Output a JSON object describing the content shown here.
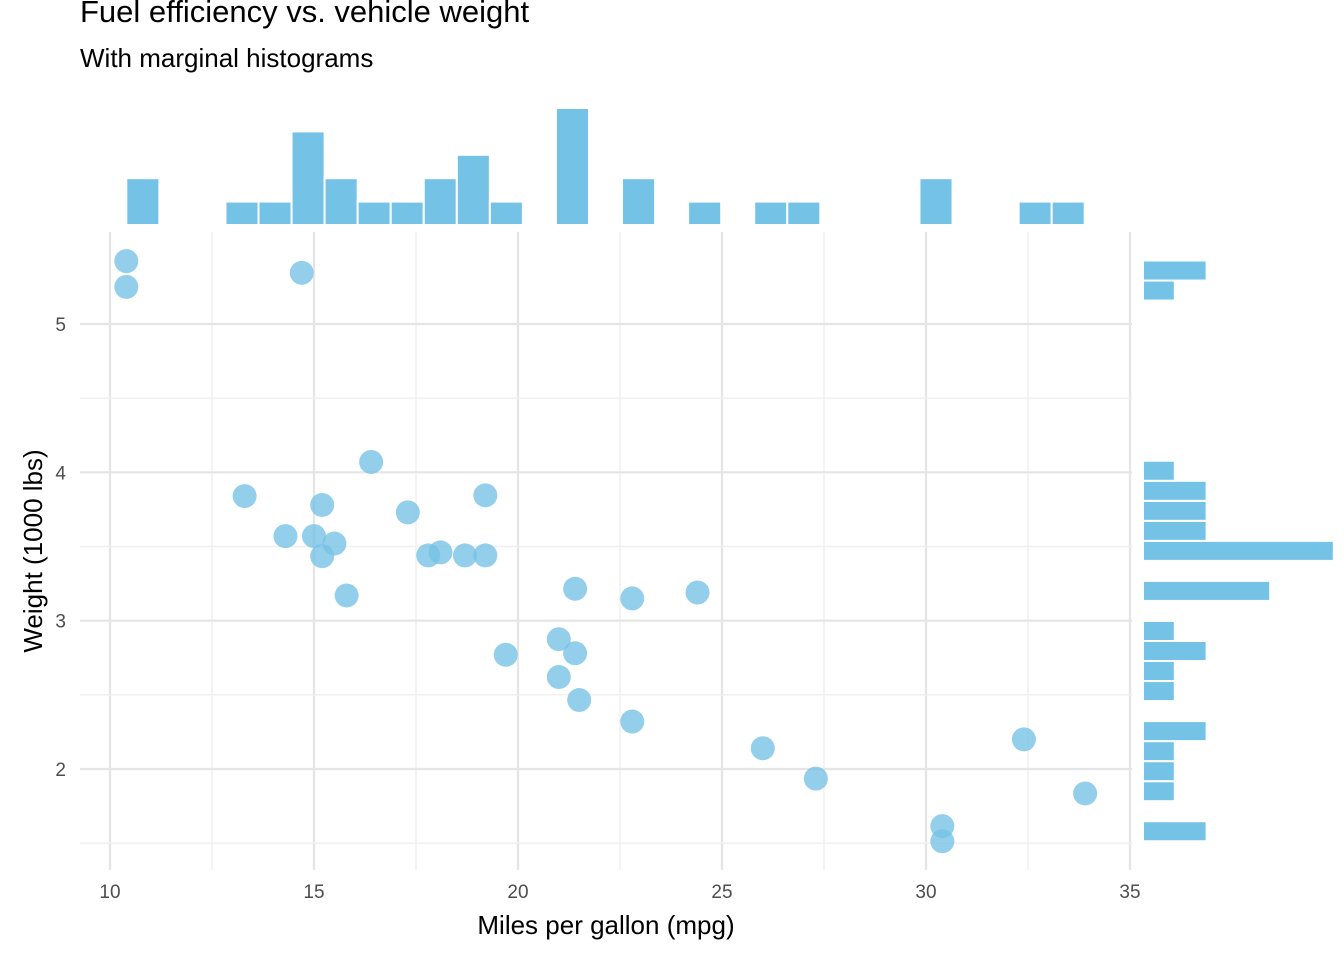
{
  "title": "Fuel efficiency vs. vehicle weight",
  "subtitle": "With marginal histograms",
  "colors": {
    "point": "#74c2e6",
    "bar": "#74c2e6",
    "grid": "#e5e5e5",
    "grid_minor": "#efefef"
  },
  "chart_data": {
    "type": "scatter",
    "title": "Fuel efficiency vs. vehicle weight",
    "subtitle": "With marginal histograms",
    "xlabel": "Miles per gallon (mpg)",
    "ylabel": "Weight (1000 lbs)",
    "xlim": [
      9.3,
      35
    ],
    "ylim": [
      1.35,
      5.58
    ],
    "xticks": [
      10,
      15,
      20,
      25,
      30,
      35
    ],
    "yticks": [
      2,
      3,
      4,
      5
    ],
    "grid": true,
    "legend": "none",
    "points": [
      {
        "x": 21.0,
        "y": 2.62
      },
      {
        "x": 21.0,
        "y": 2.875
      },
      {
        "x": 22.8,
        "y": 2.32
      },
      {
        "x": 21.4,
        "y": 3.215
      },
      {
        "x": 18.7,
        "y": 3.44
      },
      {
        "x": 18.1,
        "y": 3.46
      },
      {
        "x": 14.3,
        "y": 3.57
      },
      {
        "x": 24.4,
        "y": 3.19
      },
      {
        "x": 22.8,
        "y": 3.15
      },
      {
        "x": 19.2,
        "y": 3.44
      },
      {
        "x": 17.8,
        "y": 3.44
      },
      {
        "x": 16.4,
        "y": 4.07
      },
      {
        "x": 17.3,
        "y": 3.73
      },
      {
        "x": 15.2,
        "y": 3.78
      },
      {
        "x": 10.4,
        "y": 5.25
      },
      {
        "x": 10.4,
        "y": 5.424
      },
      {
        "x": 14.7,
        "y": 5.345
      },
      {
        "x": 32.4,
        "y": 2.2
      },
      {
        "x": 30.4,
        "y": 1.615
      },
      {
        "x": 33.9,
        "y": 1.835
      },
      {
        "x": 21.5,
        "y": 2.465
      },
      {
        "x": 15.5,
        "y": 3.52
      },
      {
        "x": 15.2,
        "y": 3.435
      },
      {
        "x": 13.3,
        "y": 3.84
      },
      {
        "x": 19.2,
        "y": 3.845
      },
      {
        "x": 27.3,
        "y": 1.935
      },
      {
        "x": 26.0,
        "y": 2.14
      },
      {
        "x": 30.4,
        "y": 1.513
      },
      {
        "x": 15.8,
        "y": 3.17
      },
      {
        "x": 19.7,
        "y": 2.77
      },
      {
        "x": 15.0,
        "y": 3.57
      },
      {
        "x": 21.4,
        "y": 2.78
      }
    ],
    "top_histogram": {
      "bin_width": 0.81,
      "bins": [
        {
          "start": 10.4,
          "count": 2
        },
        {
          "start": 11.21,
          "count": 0
        },
        {
          "start": 12.02,
          "count": 0
        },
        {
          "start": 12.83,
          "count": 1
        },
        {
          "start": 13.64,
          "count": 1
        },
        {
          "start": 14.45,
          "count": 4
        },
        {
          "start": 15.26,
          "count": 2
        },
        {
          "start": 16.07,
          "count": 1
        },
        {
          "start": 16.88,
          "count": 1
        },
        {
          "start": 17.69,
          "count": 2
        },
        {
          "start": 18.5,
          "count": 3
        },
        {
          "start": 19.31,
          "count": 1
        },
        {
          "start": 20.12,
          "count": 0
        },
        {
          "start": 20.93,
          "count": 5
        },
        {
          "start": 21.74,
          "count": 0
        },
        {
          "start": 22.55,
          "count": 2
        },
        {
          "start": 23.36,
          "count": 0
        },
        {
          "start": 24.17,
          "count": 1
        },
        {
          "start": 24.98,
          "count": 0
        },
        {
          "start": 25.79,
          "count": 1
        },
        {
          "start": 26.6,
          "count": 1
        },
        {
          "start": 27.41,
          "count": 0
        },
        {
          "start": 28.22,
          "count": 0
        },
        {
          "start": 29.03,
          "count": 0
        },
        {
          "start": 29.84,
          "count": 2
        },
        {
          "start": 30.65,
          "count": 0
        },
        {
          "start": 31.46,
          "count": 0
        },
        {
          "start": 32.27,
          "count": 1
        },
        {
          "start": 33.08,
          "count": 1
        }
      ]
    },
    "right_histogram": {
      "bin_width": 0.135,
      "bins": [
        {
          "start": 1.513,
          "count": 2
        },
        {
          "start": 1.648,
          "count": 0
        },
        {
          "start": 1.783,
          "count": 1
        },
        {
          "start": 1.918,
          "count": 1
        },
        {
          "start": 2.053,
          "count": 1
        },
        {
          "start": 2.188,
          "count": 2
        },
        {
          "start": 2.323,
          "count": 0
        },
        {
          "start": 2.458,
          "count": 1
        },
        {
          "start": 2.593,
          "count": 1
        },
        {
          "start": 2.728,
          "count": 2
        },
        {
          "start": 2.863,
          "count": 1
        },
        {
          "start": 2.998,
          "count": 0
        },
        {
          "start": 3.133,
          "count": 4
        },
        {
          "start": 3.268,
          "count": 0
        },
        {
          "start": 3.403,
          "count": 6
        },
        {
          "start": 3.538,
          "count": 2
        },
        {
          "start": 3.673,
          "count": 2
        },
        {
          "start": 3.808,
          "count": 2
        },
        {
          "start": 3.943,
          "count": 1
        },
        {
          "start": 4.078,
          "count": 0
        },
        {
          "start": 4.213,
          "count": 0
        },
        {
          "start": 4.348,
          "count": 0
        },
        {
          "start": 4.483,
          "count": 0
        },
        {
          "start": 4.618,
          "count": 0
        },
        {
          "start": 4.753,
          "count": 0
        },
        {
          "start": 4.888,
          "count": 0
        },
        {
          "start": 5.023,
          "count": 0
        },
        {
          "start": 5.158,
          "count": 1
        },
        {
          "start": 5.293,
          "count": 2
        }
      ]
    }
  }
}
